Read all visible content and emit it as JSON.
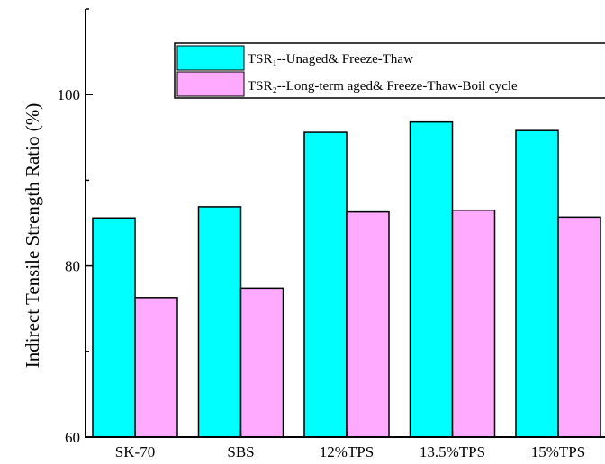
{
  "chart_data": {
    "type": "bar",
    "categories": [
      "SK-70",
      "SBS",
      "12%TPS",
      "13.5%TPS",
      "15%TPS"
    ],
    "series": [
      {
        "name": "TSR₁--Unaged& Freeze-Thaw",
        "color": "#00FFFF",
        "values": [
          85.6,
          86.9,
          95.6,
          96.8,
          95.8
        ]
      },
      {
        "name": "TSR₂--Long-term aged& Freeze-Thaw-Boil cycle",
        "color": "#FFAAFF",
        "values": [
          76.3,
          77.4,
          86.3,
          86.5,
          85.7
        ]
      }
    ],
    "xlabel": "",
    "ylabel": "Indirect Tensile Strength Ratio (%)",
    "ylim": [
      60,
      110
    ],
    "yticks": [
      60,
      80,
      100
    ],
    "legend": "top-right",
    "grid": false
  }
}
